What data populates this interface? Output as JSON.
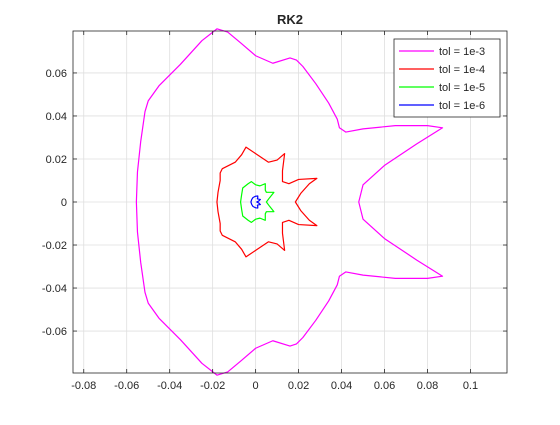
{
  "chart_data": {
    "type": "line",
    "title": "RK2",
    "xlabel": "",
    "ylabel": "",
    "xlim": [
      -0.085,
      0.117
    ],
    "ylim": [
      -0.0795,
      0.0795
    ],
    "xticks": [
      -0.08,
      -0.06,
      -0.04,
      -0.02,
      0,
      0.02,
      0.04,
      0.06,
      0.08,
      0.1
    ],
    "xtick_labels": [
      "-0.08",
      "-0.06",
      "-0.04",
      "-0.02",
      "0",
      "0.02",
      "0.04",
      "0.06",
      "0.08",
      "0.1"
    ],
    "yticks": [
      -0.06,
      -0.04,
      -0.02,
      0,
      0.02,
      0.04,
      0.06
    ],
    "ytick_labels": [
      "-0.06",
      "-0.04",
      "-0.02",
      "0",
      "0.02",
      "0.04",
      "0.06"
    ],
    "grid": true,
    "legend_position": "top-right",
    "series": [
      {
        "name": "tol = 1e-3",
        "color": "#ff00ff",
        "upper": [
          [
            0.048,
            0.0
          ],
          [
            0.05,
            0.008
          ],
          [
            0.06,
            0.017
          ],
          [
            0.075,
            0.027
          ],
          [
            0.087,
            0.0345
          ],
          [
            0.08,
            0.0355
          ],
          [
            0.065,
            0.0355
          ],
          [
            0.05,
            0.034
          ],
          [
            0.042,
            0.0325
          ],
          [
            0.039,
            0.0345
          ],
          [
            0.038,
            0.0385
          ],
          [
            0.034,
            0.046
          ],
          [
            0.028,
            0.055
          ],
          [
            0.022,
            0.063
          ],
          [
            0.019,
            0.066
          ],
          [
            0.016,
            0.067
          ],
          [
            0.008,
            0.0645
          ],
          [
            0.0,
            0.068
          ],
          [
            -0.007,
            0.074
          ],
          [
            -0.013,
            0.079
          ],
          [
            -0.018,
            0.0805
          ],
          [
            -0.025,
            0.075
          ],
          [
            -0.035,
            0.064
          ],
          [
            -0.045,
            0.054
          ],
          [
            -0.05,
            0.047
          ],
          [
            -0.0515,
            0.042
          ],
          [
            -0.0535,
            0.028
          ],
          [
            -0.055,
            0.014
          ],
          [
            -0.0555,
            0.0
          ]
        ]
      },
      {
        "name": "tol = 1e-4",
        "color": "#ff0000",
        "upper": [
          [
            0.0185,
            0.0
          ],
          [
            0.021,
            0.004
          ],
          [
            0.025,
            0.0085
          ],
          [
            0.0285,
            0.011
          ],
          [
            0.02,
            0.0105
          ],
          [
            0.0155,
            0.0085
          ],
          [
            0.0125,
            0.0095
          ],
          [
            0.0125,
            0.0145
          ],
          [
            0.0135,
            0.0225
          ],
          [
            0.01,
            0.0195
          ],
          [
            0.006,
            0.0185
          ],
          [
            0.0,
            0.0225
          ],
          [
            -0.0045,
            0.0255
          ],
          [
            -0.0065,
            0.022
          ],
          [
            -0.0095,
            0.0185
          ],
          [
            -0.0155,
            0.0155
          ],
          [
            -0.0165,
            0.0135
          ],
          [
            -0.0165,
            0.01
          ],
          [
            -0.0175,
            0.0045
          ],
          [
            -0.018,
            0.0
          ]
        ]
      },
      {
        "name": "tol = 1e-5",
        "color": "#00ff00",
        "upper": [
          [
            0.005,
            0.0
          ],
          [
            0.0065,
            0.002
          ],
          [
            0.0085,
            0.0045
          ],
          [
            0.005,
            0.0045
          ],
          [
            0.0045,
            0.0055
          ],
          [
            0.0045,
            0.0075
          ],
          [
            0.0045,
            0.0085
          ],
          [
            0.002,
            0.0075
          ],
          [
            0.0,
            0.008
          ],
          [
            -0.002,
            0.0095
          ],
          [
            -0.0035,
            0.0085
          ],
          [
            -0.006,
            0.0065
          ],
          [
            -0.0065,
            0.0035
          ],
          [
            -0.007,
            0.0
          ]
        ]
      },
      {
        "name": "tol = 1e-6",
        "color": "#0000ff",
        "upper": [
          [
            0.0005,
            0.0
          ],
          [
            0.0015,
            0.0005
          ],
          [
            0.0022,
            0.0012
          ],
          [
            0.0015,
            0.0013
          ],
          [
            0.0008,
            0.0015
          ],
          [
            0.001,
            0.0021
          ],
          [
            0.001,
            0.0028
          ],
          [
            0.0,
            0.0027
          ],
          [
            -0.0012,
            0.0021
          ],
          [
            -0.0018,
            0.0012
          ],
          [
            -0.0022,
            0.0
          ]
        ]
      }
    ]
  }
}
